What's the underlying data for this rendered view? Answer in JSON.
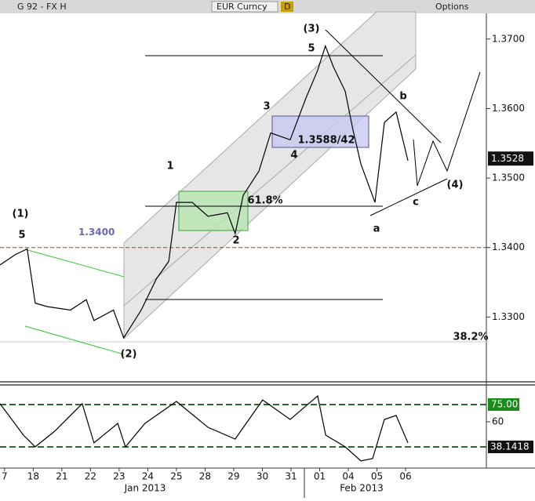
{
  "header": {
    "left": "G 92 - FX H",
    "security": "EUR Curncy",
    "period": "D",
    "options": "Options"
  },
  "chart_data": [
    {
      "type": "line",
      "color": "#000000",
      "x": [
        -0.16,
        0.38,
        0.79,
        1.07,
        1.48,
        2.3,
        2.85,
        3.12,
        3.8,
        4.16,
        4.77,
        5.3,
        5.73,
        6.0,
        6.55,
        7.1,
        7.78,
        8.05,
        8.33,
        8.88,
        9.29,
        9.97,
        10.52,
        10.93,
        11.2,
        11.48,
        11.89,
        12.16,
        12.44,
        12.93,
        13.26,
        13.67,
        14.08
      ],
      "values": [
        1.3375,
        1.339,
        1.3398,
        1.332,
        1.3315,
        1.331,
        1.3325,
        1.3295,
        1.331,
        1.327,
        1.331,
        1.3355,
        1.338,
        1.3465,
        1.3465,
        1.3445,
        1.345,
        1.342,
        1.3475,
        1.351,
        1.3565,
        1.3555,
        1.3615,
        1.3655,
        1.369,
        1.366,
        1.3625,
        1.357,
        1.352,
        1.3465,
        1.358,
        1.3595,
        1.3525
      ],
      "last_value": 1.3528,
      "xlim": [
        -0.16,
        16.82
      ],
      "ylim": [
        1.3209,
        1.3737
      ],
      "yticks": [
        {
          "value": 1.33,
          "label": "1.3300"
        },
        {
          "value": 1.34,
          "label": "1.3400"
        },
        {
          "value": 1.35,
          "label": "1.3500"
        },
        {
          "value": 1.36,
          "label": "1.3600"
        },
        {
          "value": 1.37,
          "label": "1.3700"
        }
      ],
      "xticks": [
        {
          "value": 0,
          "label": "7"
        },
        {
          "value": 1,
          "label": "18"
        },
        {
          "value": 2,
          "label": "21"
        },
        {
          "value": 3,
          "label": "22"
        },
        {
          "value": 4,
          "label": "23"
        },
        {
          "value": 5,
          "label": "24"
        },
        {
          "value": 6,
          "label": "25"
        },
        {
          "value": 7,
          "label": "28"
        },
        {
          "value": 8,
          "label": "29"
        },
        {
          "value": 9,
          "label": "30"
        },
        {
          "value": 10,
          "label": "31"
        },
        {
          "value": 11,
          "label": "01"
        },
        {
          "value": 12,
          "label": "04"
        },
        {
          "value": 13,
          "label": "05"
        },
        {
          "value": 14,
          "label": "06"
        }
      ],
      "months": [
        "Jan 2013",
        "Feb 2013"
      ],
      "level": {
        "value": 1.34,
        "label": "1.3400"
      },
      "annotations": [
        "(1)",
        "5",
        "(2)",
        "1",
        "61.8%",
        "2",
        "3",
        "4",
        "(3)",
        "5",
        "1.3588/42",
        "a",
        "b",
        "c",
        "(4)",
        "38.2%"
      ]
    },
    {
      "type": "line",
      "color": "#000000",
      "x": [
        -0.16,
        0.66,
        1.07,
        1.75,
        2.71,
        3.12,
        3.95,
        4.22,
        4.9,
        6.0,
        7.1,
        8.05,
        9.01,
        9.97,
        10.93,
        11.21,
        11.89,
        12.44,
        12.85,
        13.26,
        13.67,
        14.08
      ],
      "values": [
        75.7,
        48.4,
        38.2,
        51.8,
        75.7,
        41.6,
        58.6,
        38.2,
        58.6,
        77.7,
        55.2,
        45,
        79,
        62,
        82.5,
        48.4,
        38.2,
        26,
        28,
        62,
        65.5,
        41.6
      ],
      "last_value": 38.1418,
      "upper_band": {
        "value": 75,
        "label": "75.00"
      },
      "xlim": [
        -0.16,
        16.82
      ],
      "ylim": [
        21.1,
        92.7
      ],
      "yticks": [
        60
      ]
    }
  ]
}
